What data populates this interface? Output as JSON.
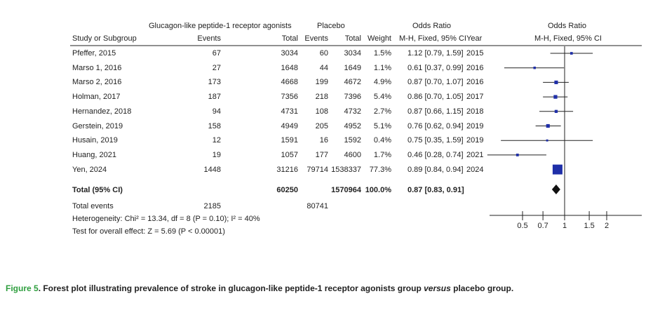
{
  "headers": {
    "group1": "Glucagon-like peptide-1 receptor agonists",
    "group2": "Placebo",
    "or_group": "Odds Ratio",
    "or_plot_group": "Odds Ratio",
    "study": "Study or Subgroup",
    "events1": "Events",
    "total1": "Total",
    "events2": "Events",
    "total2": "Total",
    "weight": "Weight",
    "method": "M-H, Fixed, 95% CI",
    "year": "Year",
    "plot_method": "M-H, Fixed, 95% CI"
  },
  "studies": [
    {
      "name": "Pfeffer, 2015",
      "e1": "67",
      "t1": "3034",
      "e2": "60",
      "t2": "3034",
      "w": "1.5%",
      "ci": "1.12 [0.79, 1.59]",
      "year": "2015"
    },
    {
      "name": "Marso 1, 2016",
      "e1": "27",
      "t1": "1648",
      "e2": "44",
      "t2": "1649",
      "w": "1.1%",
      "ci": "0.61 [0.37, 0.99]",
      "year": "2016"
    },
    {
      "name": "Marso 2, 2016",
      "e1": "173",
      "t1": "4668",
      "e2": "199",
      "t2": "4672",
      "w": "4.9%",
      "ci": "0.87 [0.70, 1.07]",
      "year": "2016"
    },
    {
      "name": "Holman, 2017",
      "e1": "187",
      "t1": "7356",
      "e2": "218",
      "t2": "7396",
      "w": "5.4%",
      "ci": "0.86 [0.70, 1.05]",
      "year": "2017"
    },
    {
      "name": "Hernandez, 2018",
      "e1": "94",
      "t1": "4731",
      "e2": "108",
      "t2": "4732",
      "w": "2.7%",
      "ci": "0.87 [0.66, 1.15]",
      "year": "2018"
    },
    {
      "name": "Gerstein, 2019",
      "e1": "158",
      "t1": "4949",
      "e2": "205",
      "t2": "4952",
      "w": "5.1%",
      "ci": "0.76 [0.62, 0.94]",
      "year": "2019"
    },
    {
      "name": "Husain, 2019",
      "e1": "12",
      "t1": "1591",
      "e2": "16",
      "t2": "1592",
      "w": "0.4%",
      "ci": "0.75 [0.35, 1.59]",
      "year": "2019"
    },
    {
      "name": "Huang, 2021",
      "e1": "19",
      "t1": "1057",
      "e2": "177",
      "t2": "4600",
      "w": "1.7%",
      "ci": "0.46 [0.28, 0.74]",
      "year": "2021"
    },
    {
      "name": "Yen, 2024",
      "e1": "1448",
      "t1": "31216",
      "e2": "79714",
      "t2": "1538337",
      "w": "77.3%",
      "ci": "0.89 [0.84, 0.94]",
      "year": "2024"
    }
  ],
  "total": {
    "label": "Total (95% CI)",
    "t1": "60250",
    "t2": "1570964",
    "w": "100.0%",
    "ci": "0.87 [0.83, 0.91]"
  },
  "total_events": {
    "label": "Total events",
    "e1": "2185",
    "e2": "80741"
  },
  "heterogeneity": "Heterogeneity: Chi² = 13.34, df = 8 (P = 0.10); I² = 40%",
  "overall_effect": "Test for overall effect: Z = 5.69 (P < 0.00001)",
  "axis_ticks": [
    "0.5",
    "0.7",
    "1",
    "1.5",
    "2"
  ],
  "caption": {
    "figure": "Figure 5",
    "text_a": ". Forest plot illustrating prevalence of stroke in glucagon-like peptide-1 receptor agonists group ",
    "text_italic": "versus",
    "text_b": " placebo group."
  },
  "colors": {
    "marker": "#1f2fa8",
    "line": "#222222",
    "caption_figure": "#2e9e3e"
  },
  "chart_data": {
    "type": "forest",
    "scale": "log",
    "xlim": [
      0.4,
      2.5
    ],
    "reference": 1,
    "ticks": [
      0.5,
      0.7,
      1,
      1.5,
      2
    ],
    "studies": [
      {
        "name": "Pfeffer, 2015",
        "or": 1.12,
        "lo": 0.79,
        "hi": 1.59,
        "weight": 1.5
      },
      {
        "name": "Marso 1, 2016",
        "or": 0.61,
        "lo": 0.37,
        "hi": 0.99,
        "weight": 1.1
      },
      {
        "name": "Marso 2, 2016",
        "or": 0.87,
        "lo": 0.7,
        "hi": 1.07,
        "weight": 4.9
      },
      {
        "name": "Holman, 2017",
        "or": 0.86,
        "lo": 0.7,
        "hi": 1.05,
        "weight": 5.4
      },
      {
        "name": "Hernandez, 2018",
        "or": 0.87,
        "lo": 0.66,
        "hi": 1.15,
        "weight": 2.7
      },
      {
        "name": "Gerstein, 2019",
        "or": 0.76,
        "lo": 0.62,
        "hi": 0.94,
        "weight": 5.1
      },
      {
        "name": "Husain, 2019",
        "or": 0.75,
        "lo": 0.35,
        "hi": 1.59,
        "weight": 0.4
      },
      {
        "name": "Huang, 2021",
        "or": 0.46,
        "lo": 0.28,
        "hi": 0.74,
        "weight": 1.7
      },
      {
        "name": "Yen, 2024",
        "or": 0.89,
        "lo": 0.84,
        "hi": 0.94,
        "weight": 77.3
      }
    ],
    "total": {
      "or": 0.87,
      "lo": 0.83,
      "hi": 0.91
    }
  }
}
